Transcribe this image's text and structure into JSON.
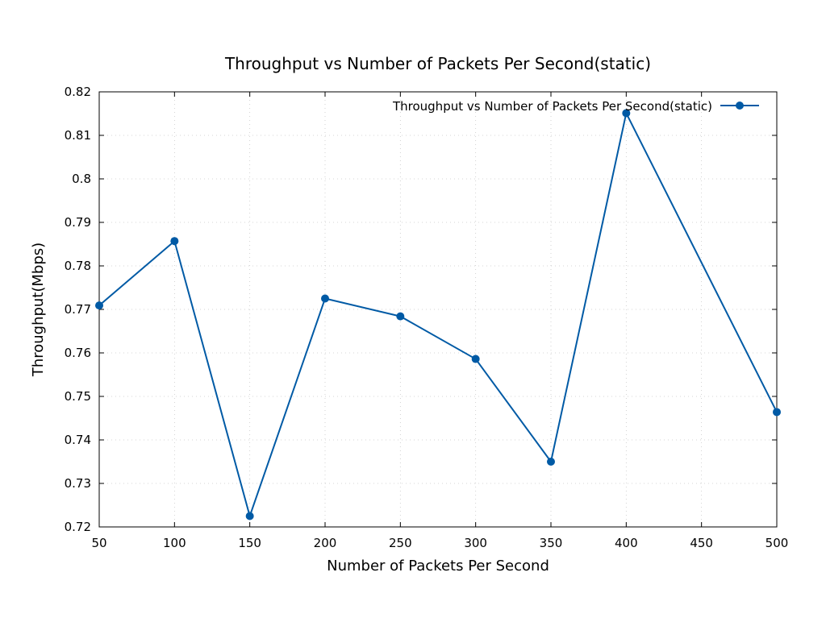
{
  "chart_data": {
    "type": "line",
    "title": "Throughput vs Number of Packets Per Second(static)",
    "xlabel": "Number of Packets Per Second",
    "ylabel": "Throughput(Mbps)",
    "x": [
      50,
      100,
      150,
      200,
      250,
      300,
      350,
      400,
      450,
      500
    ],
    "xlim": [
      50,
      500
    ],
    "ylim": [
      0.72,
      0.82
    ],
    "xticks": [
      50,
      100,
      150,
      200,
      250,
      300,
      350,
      400,
      450,
      500
    ],
    "xtick_labels": [
      "50",
      "100",
      "150",
      "200",
      "250",
      "300",
      "350",
      "400",
      "450",
      "500"
    ],
    "yticks": [
      0.72,
      0.73,
      0.74,
      0.75,
      0.76,
      0.77,
      0.78,
      0.79,
      0.8,
      0.81,
      0.82
    ],
    "ytick_labels": [
      "0.72",
      "0.73",
      "0.74",
      "0.75",
      "0.76",
      "0.77",
      "0.78",
      "0.79",
      "0.8",
      "0.81",
      "0.82"
    ],
    "grid": true,
    "legend_position": "top-right",
    "series": [
      {
        "name": "Throughput vs Number of Packets Per Second(static)",
        "color": "#005aa5",
        "points": [
          [
            50,
            0.7709
          ],
          [
            100,
            0.7857
          ],
          [
            150,
            0.7225
          ],
          [
            200,
            0.7725
          ],
          [
            250,
            0.7684
          ],
          [
            300,
            0.7586
          ],
          [
            350,
            0.735
          ],
          [
            400,
            0.8151
          ],
          [
            500,
            0.7464
          ]
        ]
      }
    ]
  }
}
